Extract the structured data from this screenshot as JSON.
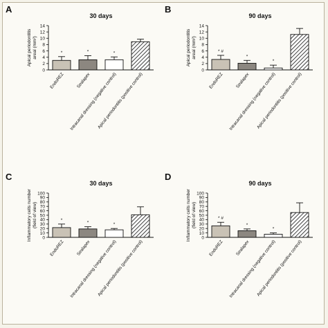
{
  "colors": {
    "EndoREZ": "#c9c2b5",
    "Sealapex": "#8c8780",
    "negative": "#ffffff",
    "positive": "hatch"
  },
  "chart_data": [
    {
      "letter": "A",
      "type": "bar",
      "title": "30 days",
      "ylabel_lines": [
        "Apical periodontitis",
        "areal (mm²)"
      ],
      "ylim": [
        0,
        14
      ],
      "yticks": [
        0,
        2,
        4,
        6,
        8,
        10,
        12,
        14
      ],
      "categories": [
        "EndoREZ",
        "Sealapex",
        "Intracanal dressing (negative control)",
        "Apical periodontitis (positive control)"
      ],
      "values": [
        3.0,
        3.2,
        3.2,
        8.9
      ],
      "errors": [
        1.2,
        1.3,
        0.9,
        0.8
      ],
      "marks": [
        "*",
        "*",
        "*",
        ""
      ]
    },
    {
      "letter": "B",
      "type": "bar",
      "title": "90 days",
      "ylabel_lines": [
        "Apical periodontitis",
        "areal (mm²)"
      ],
      "ylim": [
        0,
        14
      ],
      "yticks": [
        0,
        2,
        4,
        6,
        8,
        10,
        12,
        14
      ],
      "categories": [
        "EndoREZ",
        "Sealapex",
        "Intracanal dressing (negative control)",
        "Apical periodontitis (positive control)"
      ],
      "values": [
        3.3,
        2.1,
        0.6,
        11.2
      ],
      "errors": [
        1.3,
        0.9,
        0.9,
        1.9
      ],
      "marks": [
        "* #",
        "*",
        "*",
        ""
      ]
    },
    {
      "letter": "C",
      "type": "bar",
      "title": "30 days",
      "ylabel_lines": [
        "Inflammatory cells number",
        "(field of view)"
      ],
      "ylim": [
        0,
        100
      ],
      "yticks": [
        0,
        10,
        20,
        30,
        40,
        50,
        60,
        70,
        80,
        90,
        100
      ],
      "categories": [
        "EndoREZ",
        "Sealapex",
        "Intracanal dressing (negative control)",
        "Apical periodontitis (positive control)"
      ],
      "values": [
        22,
        19,
        17,
        51
      ],
      "errors": [
        8,
        5,
        3,
        18
      ],
      "marks": [
        "*",
        "*",
        "*",
        ""
      ]
    },
    {
      "letter": "D",
      "type": "bar",
      "title": "90 days",
      "ylabel_lines": [
        "Inflammatory cells number",
        "(field of view)"
      ],
      "ylim": [
        0,
        100
      ],
      "yticks": [
        0,
        10,
        20,
        30,
        40,
        50,
        60,
        70,
        80,
        90,
        100
      ],
      "categories": [
        "EndoREZ",
        "Sealapex",
        "Intracanal dressing (negative control)",
        "Apical periodontitis (positive control)"
      ],
      "values": [
        26,
        15,
        7,
        56
      ],
      "errors": [
        8,
        4,
        3,
        22
      ],
      "marks": [
        "* #",
        "*",
        "*",
        ""
      ]
    }
  ]
}
